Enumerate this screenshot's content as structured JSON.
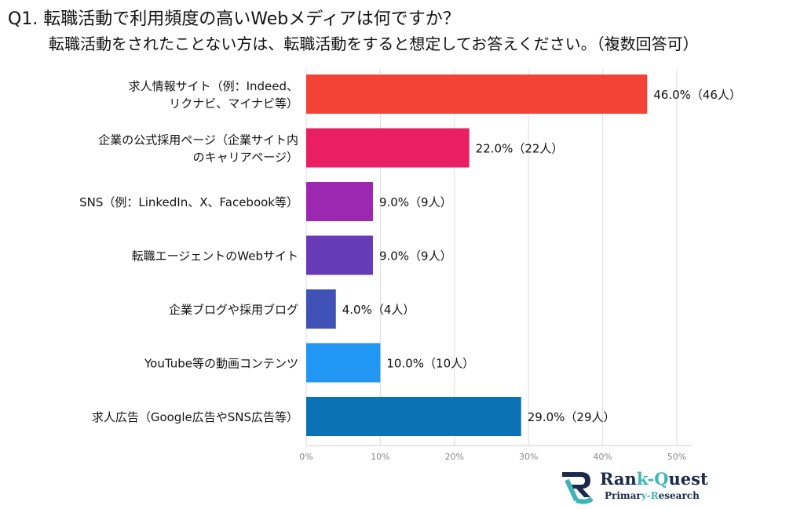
{
  "title_line1": "Q1. 転職活動で利用頻度の高いWebメディアは何ですか？",
  "title_line2": "転職活動をされたことない方は、転職活動をすると想定してお答えください。（複数回答可）",
  "logo": {
    "name_a": "Ran",
    "name_b": "k-",
    "name_c": "Q",
    "name_d": "uest",
    "sub_a": "Primar",
    "sub_b": "y-",
    "sub_c": "R",
    "sub_d": "esearch",
    "text": "Rank-Quest Primary-Research"
  },
  "chart_data": {
    "type": "bar",
    "orientation": "horizontal",
    "categories": [
      [
        "求人情報サイト（例：Indeed、",
        "リクナビ、マイナビ等）"
      ],
      [
        "企業の公式採用ページ（企業サイト内",
        "のキャリアページ）"
      ],
      [
        "SNS（例：LinkedIn、X、Facebook等）"
      ],
      [
        "転職エージェントのWebサイト"
      ],
      [
        "企業ブログや採用ブログ"
      ],
      [
        "YouTube等の動画コンテンツ"
      ],
      [
        "求人広告（Google広告やSNS広告等）"
      ]
    ],
    "values": [
      46,
      22,
      9,
      9,
      4,
      10,
      29
    ],
    "data_labels": [
      "46.0%（46人）",
      "22.0%（22人）",
      "9.0%（9人）",
      "9.0%（9人）",
      "4.0%（4人）",
      "10.0%（10人）",
      "29.0%（29人）"
    ],
    "colors": [
      "#f44336",
      "#e91e63",
      "#9c27b0",
      "#673ab7",
      "#3f51b5",
      "#2196f3",
      "#0c72b6"
    ],
    "xticks": [
      "0%",
      "10%",
      "20%",
      "30%",
      "40%",
      "50%"
    ],
    "xlim": [
      0,
      52
    ],
    "grid": true
  }
}
